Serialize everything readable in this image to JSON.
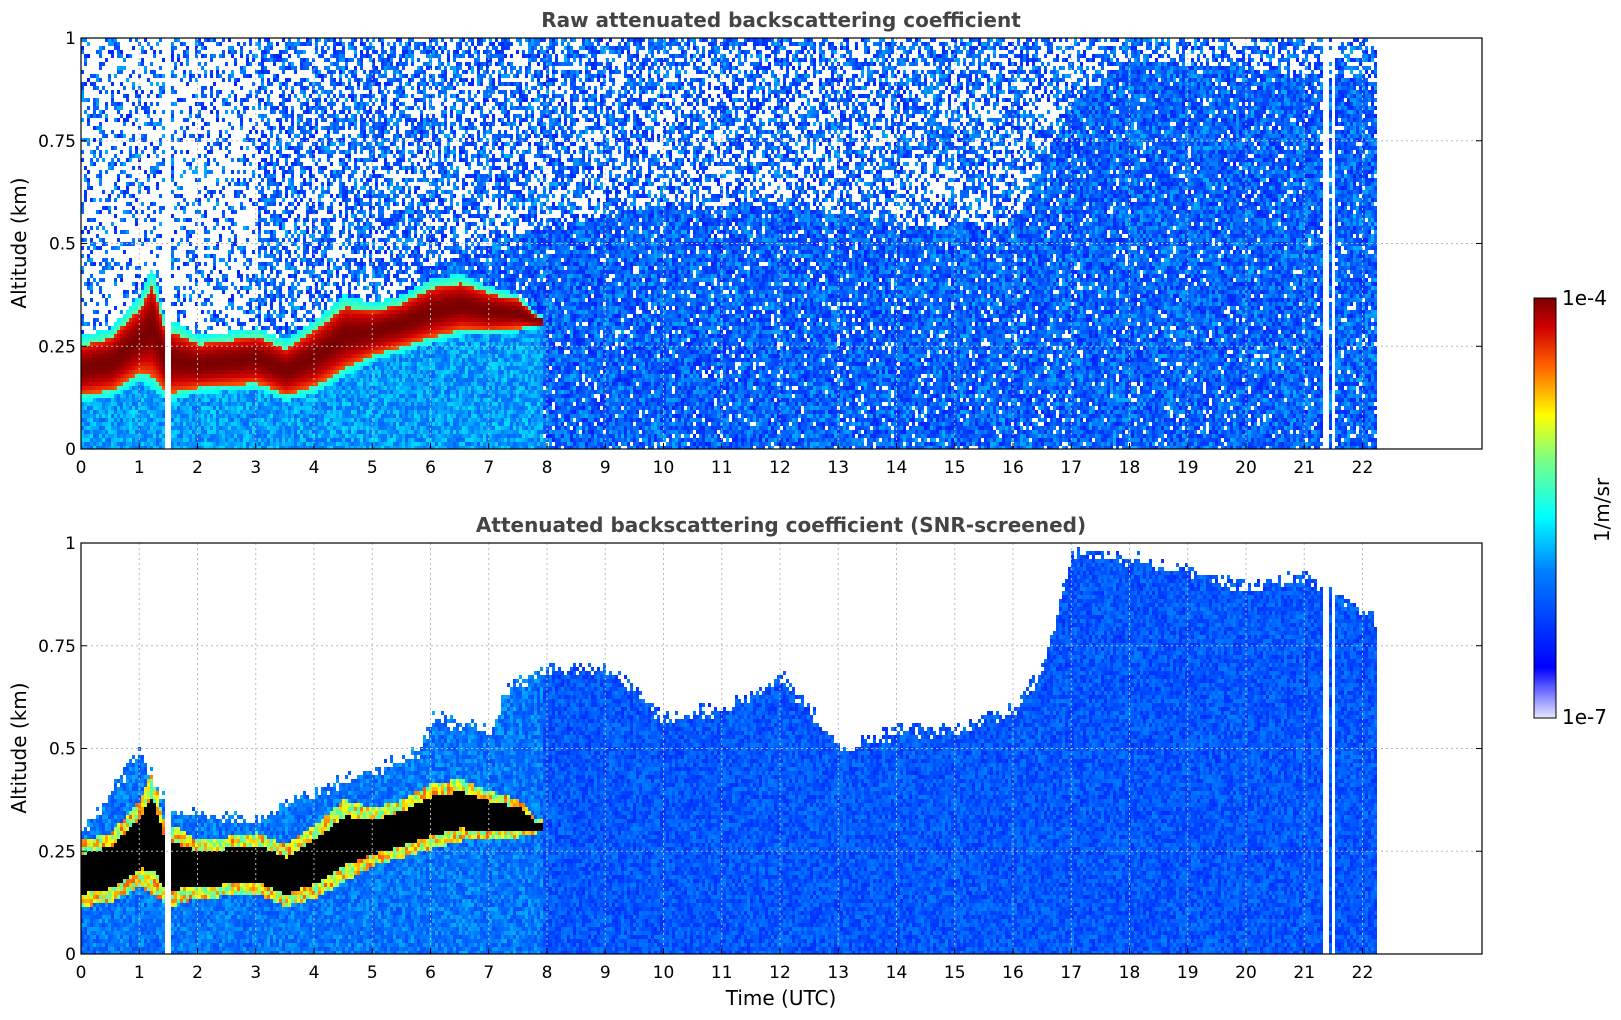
{
  "chart_data": [
    {
      "type": "heatmap",
      "title": "Raw attenuated backscattering coefficient",
      "xlabel": "",
      "ylabel": "Altitude (km)",
      "xlim": [
        0,
        24
      ],
      "ylim": [
        0,
        1
      ],
      "x_ticks": [
        "0",
        "1",
        "2",
        "3",
        "4",
        "5",
        "6",
        "7",
        "8",
        "9",
        "10",
        "11",
        "12",
        "13",
        "14",
        "15",
        "16",
        "17",
        "18",
        "19",
        "20",
        "21",
        "22"
      ],
      "y_ticks": [
        "0",
        "0.25",
        "0.5",
        "0.75",
        "1"
      ],
      "y_tick_values": [
        0,
        0.25,
        0.5,
        0.75,
        1
      ],
      "grid": true,
      "data_end_hour": 22.2,
      "gaps_hours": [
        [
          1.42,
          1.52
        ],
        [
          21.32,
          21.42
        ],
        [
          21.44,
          21.5
        ]
      ],
      "layer_top_km": [
        [
          0,
          0.28
        ],
        [
          0.5,
          0.3
        ],
        [
          1,
          0.38
        ],
        [
          1.2,
          0.45
        ],
        [
          1.4,
          0.33
        ],
        [
          2,
          0.28
        ],
        [
          3,
          0.3
        ],
        [
          3.5,
          0.27
        ],
        [
          4,
          0.32
        ],
        [
          4.5,
          0.38
        ],
        [
          5,
          0.36
        ],
        [
          5.5,
          0.38
        ],
        [
          6,
          0.42
        ],
        [
          6.5,
          0.43
        ],
        [
          7,
          0.4
        ],
        [
          7.5,
          0.38
        ],
        [
          7.8,
          0.33
        ]
      ],
      "layer_base_km": [
        [
          0,
          0.12
        ],
        [
          0.5,
          0.13
        ],
        [
          1,
          0.17
        ],
        [
          1.5,
          0.12
        ],
        [
          2,
          0.14
        ],
        [
          3,
          0.15
        ],
        [
          3.5,
          0.12
        ],
        [
          4,
          0.14
        ],
        [
          4.5,
          0.18
        ],
        [
          5,
          0.22
        ],
        [
          5.5,
          0.24
        ],
        [
          6,
          0.26
        ],
        [
          6.5,
          0.28
        ],
        [
          7,
          0.28
        ],
        [
          7.5,
          0.29
        ],
        [
          7.8,
          0.3
        ]
      ],
      "cloud_top_km": [
        [
          0,
          0.2
        ],
        [
          4,
          0.2
        ],
        [
          6,
          0.45
        ],
        [
          8,
          0.55
        ],
        [
          10,
          0.6
        ],
        [
          12,
          0.6
        ],
        [
          14,
          0.55
        ],
        [
          16,
          0.55
        ],
        [
          17,
          0.85
        ],
        [
          18,
          0.95
        ],
        [
          20,
          0.93
        ],
        [
          22.2,
          0.9
        ]
      ]
    },
    {
      "type": "heatmap",
      "title": "Attenuated backscattering coefficient (SNR-screened)",
      "xlabel": "Time (UTC)",
      "ylabel": "Altitude (km)",
      "xlim": [
        0,
        24
      ],
      "ylim": [
        0,
        1
      ],
      "x_ticks": [
        "0",
        "1",
        "2",
        "3",
        "4",
        "5",
        "6",
        "7",
        "8",
        "9",
        "10",
        "11",
        "12",
        "13",
        "14",
        "15",
        "16",
        "17",
        "18",
        "19",
        "20",
        "21",
        "22"
      ],
      "y_ticks": [
        "0",
        "0.25",
        "0.5",
        "0.75",
        "1"
      ],
      "y_tick_values": [
        0,
        0.25,
        0.5,
        0.75,
        1
      ],
      "grid": true,
      "data_end_hour": 22.2,
      "gaps_hours": [
        [
          1.42,
          1.52
        ],
        [
          21.32,
          21.42
        ],
        [
          21.44,
          21.5
        ]
      ],
      "screened_top_km": [
        [
          0,
          0.3
        ],
        [
          1,
          0.5
        ],
        [
          1.5,
          0.35
        ],
        [
          3,
          0.33
        ],
        [
          4,
          0.4
        ],
        [
          5,
          0.45
        ],
        [
          5.8,
          0.5
        ],
        [
          6,
          0.58
        ],
        [
          7,
          0.55
        ],
        [
          7.3,
          0.65
        ],
        [
          8,
          0.7
        ],
        [
          9,
          0.7
        ],
        [
          10,
          0.58
        ],
        [
          11,
          0.6
        ],
        [
          12,
          0.68
        ],
        [
          12.5,
          0.6
        ],
        [
          13,
          0.5
        ],
        [
          14,
          0.55
        ],
        [
          15,
          0.55
        ],
        [
          16,
          0.6
        ],
        [
          16.5,
          0.7
        ],
        [
          17,
          0.98
        ],
        [
          18,
          0.97
        ],
        [
          20,
          0.9
        ],
        [
          21,
          0.92
        ],
        [
          22.2,
          0.82
        ]
      ]
    }
  ],
  "colorbar": {
    "label": "1/m/sr",
    "max_label": "1e-4",
    "min_label": "1e-7",
    "scale": "log",
    "colormap": "jet",
    "min_color": "#e8e8ff",
    "max_color": "#7a0000"
  }
}
